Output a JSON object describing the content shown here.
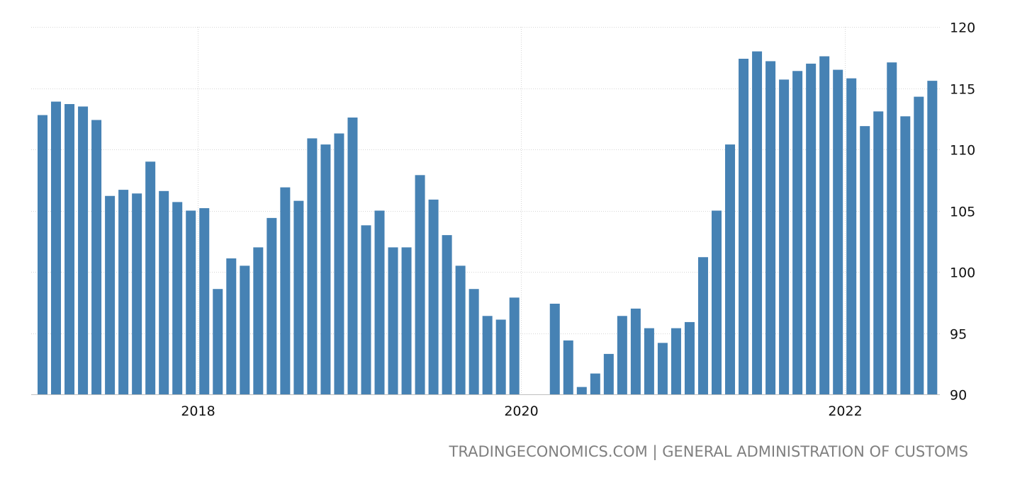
{
  "chart_data": {
    "type": "bar",
    "title": "",
    "xlabel": "",
    "ylabel": "",
    "x_tick_labels": [
      "2018",
      "2020",
      "2022"
    ],
    "y_tick_labels": [
      "90",
      "95",
      "100",
      "105",
      "110",
      "115",
      "120"
    ],
    "ylim": [
      90,
      120
    ],
    "grid": true,
    "bar_color": "#4682b4",
    "categories": [
      "2017-01",
      "2017-02",
      "2017-03",
      "2017-04",
      "2017-05",
      "2017-06",
      "2017-07",
      "2017-08",
      "2017-09",
      "2017-10",
      "2017-11",
      "2017-12",
      "2018-01",
      "2018-02",
      "2018-03",
      "2018-04",
      "2018-05",
      "2018-06",
      "2018-07",
      "2018-08",
      "2018-09",
      "2018-10",
      "2018-11",
      "2018-12",
      "2019-01",
      "2019-02",
      "2019-03",
      "2019-04",
      "2019-05",
      "2019-06",
      "2019-07",
      "2019-08",
      "2019-09",
      "2019-10",
      "2019-11",
      "2019-12",
      "2020-01",
      "2020-02",
      "2020-03",
      "2020-04",
      "2020-05",
      "2020-06",
      "2020-07",
      "2020-08",
      "2020-09",
      "2020-10",
      "2020-11",
      "2020-12",
      "2021-01",
      "2021-02",
      "2021-03",
      "2021-04",
      "2021-05",
      "2021-06",
      "2021-07",
      "2021-08",
      "2021-09",
      "2021-10",
      "2021-11",
      "2021-12",
      "2022-01",
      "2022-02",
      "2022-03",
      "2022-04",
      "2022-05",
      "2022-06",
      "2022-07"
    ],
    "values": [
      112.8,
      113.9,
      113.7,
      113.5,
      112.4,
      106.2,
      106.7,
      106.4,
      109.0,
      106.6,
      105.7,
      105.0,
      105.2,
      98.6,
      101.1,
      100.5,
      102.0,
      104.4,
      106.9,
      105.8,
      110.9,
      110.4,
      111.3,
      112.6,
      103.8,
      105.0,
      102.0,
      102.0,
      107.9,
      105.9,
      103.0,
      100.5,
      98.6,
      96.4,
      96.1,
      97.9,
      null,
      null,
      97.4,
      94.4,
      90.6,
      91.7,
      93.3,
      96.4,
      97.0,
      95.4,
      94.2,
      95.4,
      95.9,
      101.2,
      105.0,
      110.4,
      117.4,
      118.0,
      117.2,
      115.7,
      116.4,
      117.0,
      117.6,
      116.5,
      115.8,
      111.9,
      113.1,
      117.1,
      112.7,
      114.3,
      115.6
    ]
  },
  "source_text": "TRADINGECONOMICS.COM | GENERAL ADMINISTRATION OF CUSTOMS"
}
